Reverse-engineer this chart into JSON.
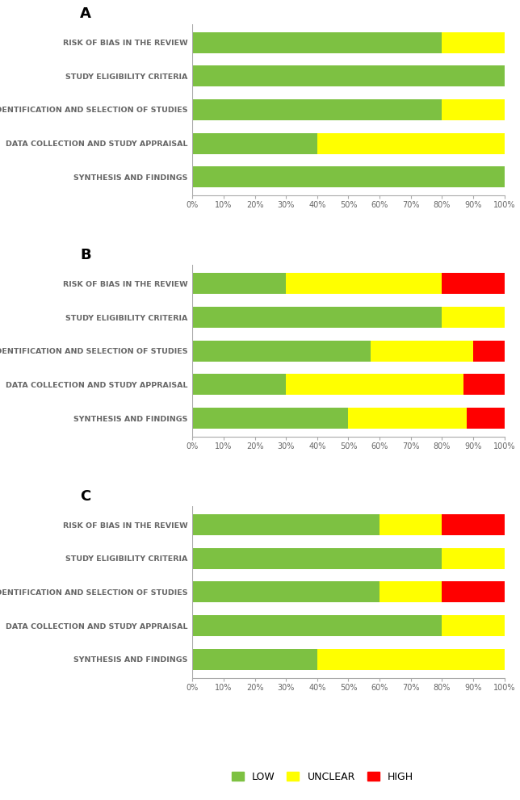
{
  "panels": [
    {
      "label": "A",
      "categories": [
        "RISK OF BIAS IN THE REVIEW",
        "STUDY ELIGIBILITY CRITERIA",
        "IDENTIFICATION AND SELECTION OF STUDIES",
        "DATA COLLECTION AND STUDY APPRAISAL",
        "SYNTHESIS AND FINDINGS"
      ],
      "low": [
        80,
        100,
        80,
        40,
        100
      ],
      "unclear": [
        20,
        0,
        20,
        60,
        0
      ],
      "high": [
        0,
        0,
        0,
        0,
        0
      ]
    },
    {
      "label": "B",
      "categories": [
        "RISK OF BIAS IN THE REVIEW",
        "STUDY ELIGIBILITY CRITERIA",
        "IDENTIFICATION AND SELECTION OF STUDIES",
        "DATA COLLECTION AND STUDY APPRAISAL",
        "SYNTHESIS AND FINDINGS"
      ],
      "low": [
        30,
        80,
        57,
        30,
        50
      ],
      "unclear": [
        50,
        20,
        33,
        57,
        38
      ],
      "high": [
        20,
        0,
        10,
        13,
        12
      ]
    },
    {
      "label": "C",
      "categories": [
        "RISK OF BIAS IN THE REVIEW",
        "STUDY ELIGIBILITY CRITERIA",
        "IDENTIFICATION AND SELECTION OF STUDIES",
        "DATA COLLECTION AND STUDY APPRAISAL",
        "SYNTHESIS AND FINDINGS"
      ],
      "low": [
        60,
        80,
        60,
        80,
        40
      ],
      "unclear": [
        20,
        20,
        20,
        20,
        60
      ],
      "high": [
        20,
        0,
        20,
        0,
        0
      ]
    }
  ],
  "color_low": "#7dc142",
  "color_unclear": "#ffff00",
  "color_high": "#ff0000",
  "background": "#ffffff",
  "bar_height": 0.62,
  "label_fontsize": 6.8,
  "tick_fontsize": 7.0,
  "panel_label_fontsize": 13,
  "legend_fontsize": 9
}
